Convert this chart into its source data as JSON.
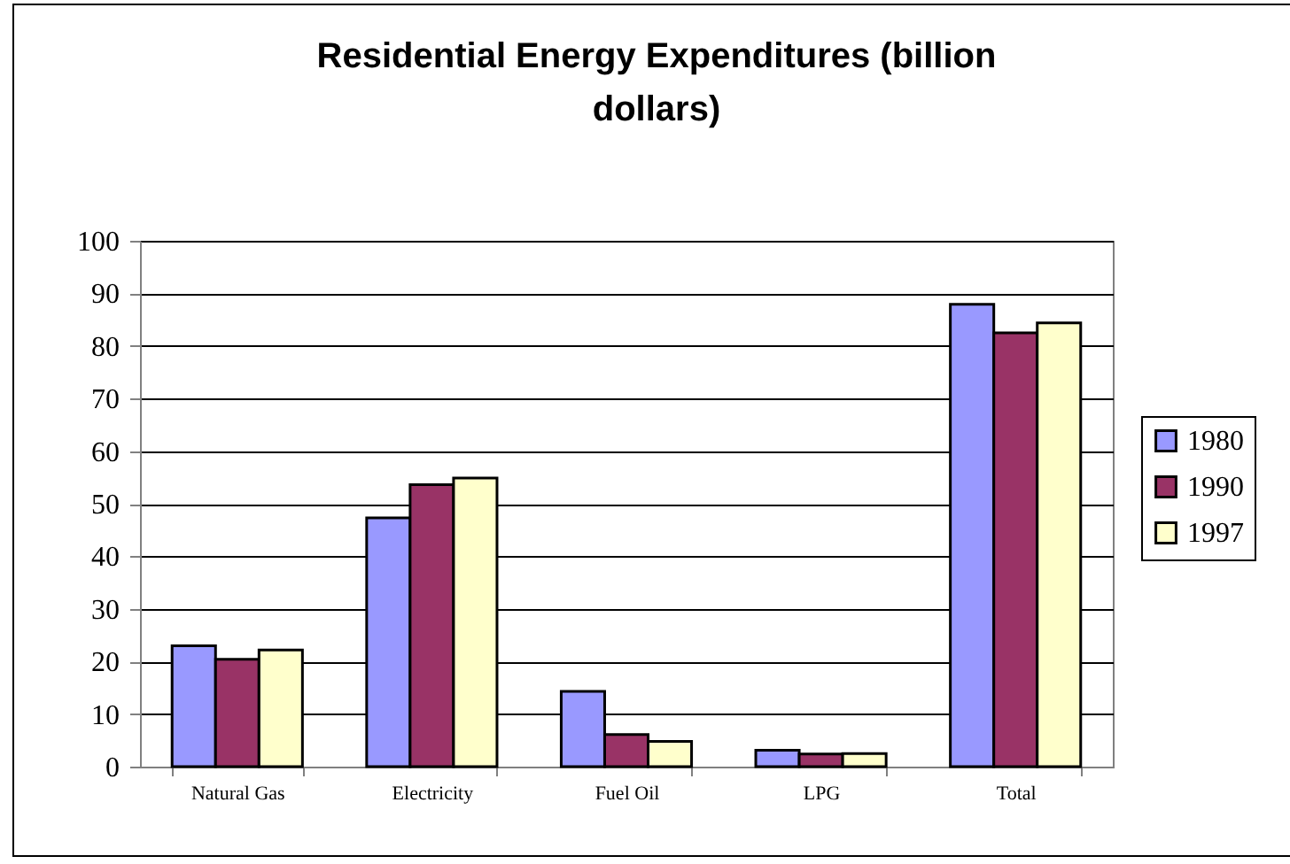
{
  "chart_data": {
    "type": "bar",
    "title": "Residential Energy Expenditures (billion dollars)",
    "categories": [
      "Natural Gas",
      "Electricity",
      "Fuel Oil",
      "LPG",
      "Total"
    ],
    "series": [
      {
        "name": "1980",
        "color": "#9999ff",
        "values": [
          23.0,
          47.3,
          14.3,
          3.1,
          87.9
        ]
      },
      {
        "name": "1990",
        "color": "#993366",
        "values": [
          20.4,
          53.6,
          6.1,
          2.4,
          82.5
        ]
      },
      {
        "name": "1997",
        "color": "#ffffcc",
        "values": [
          22.2,
          54.9,
          4.8,
          2.5,
          84.4
        ]
      }
    ],
    "ylim": [
      0,
      100
    ],
    "yticks": [
      0,
      10,
      20,
      30,
      40,
      50,
      60,
      70,
      80,
      90,
      100
    ],
    "grid": "y",
    "legend": "right"
  }
}
